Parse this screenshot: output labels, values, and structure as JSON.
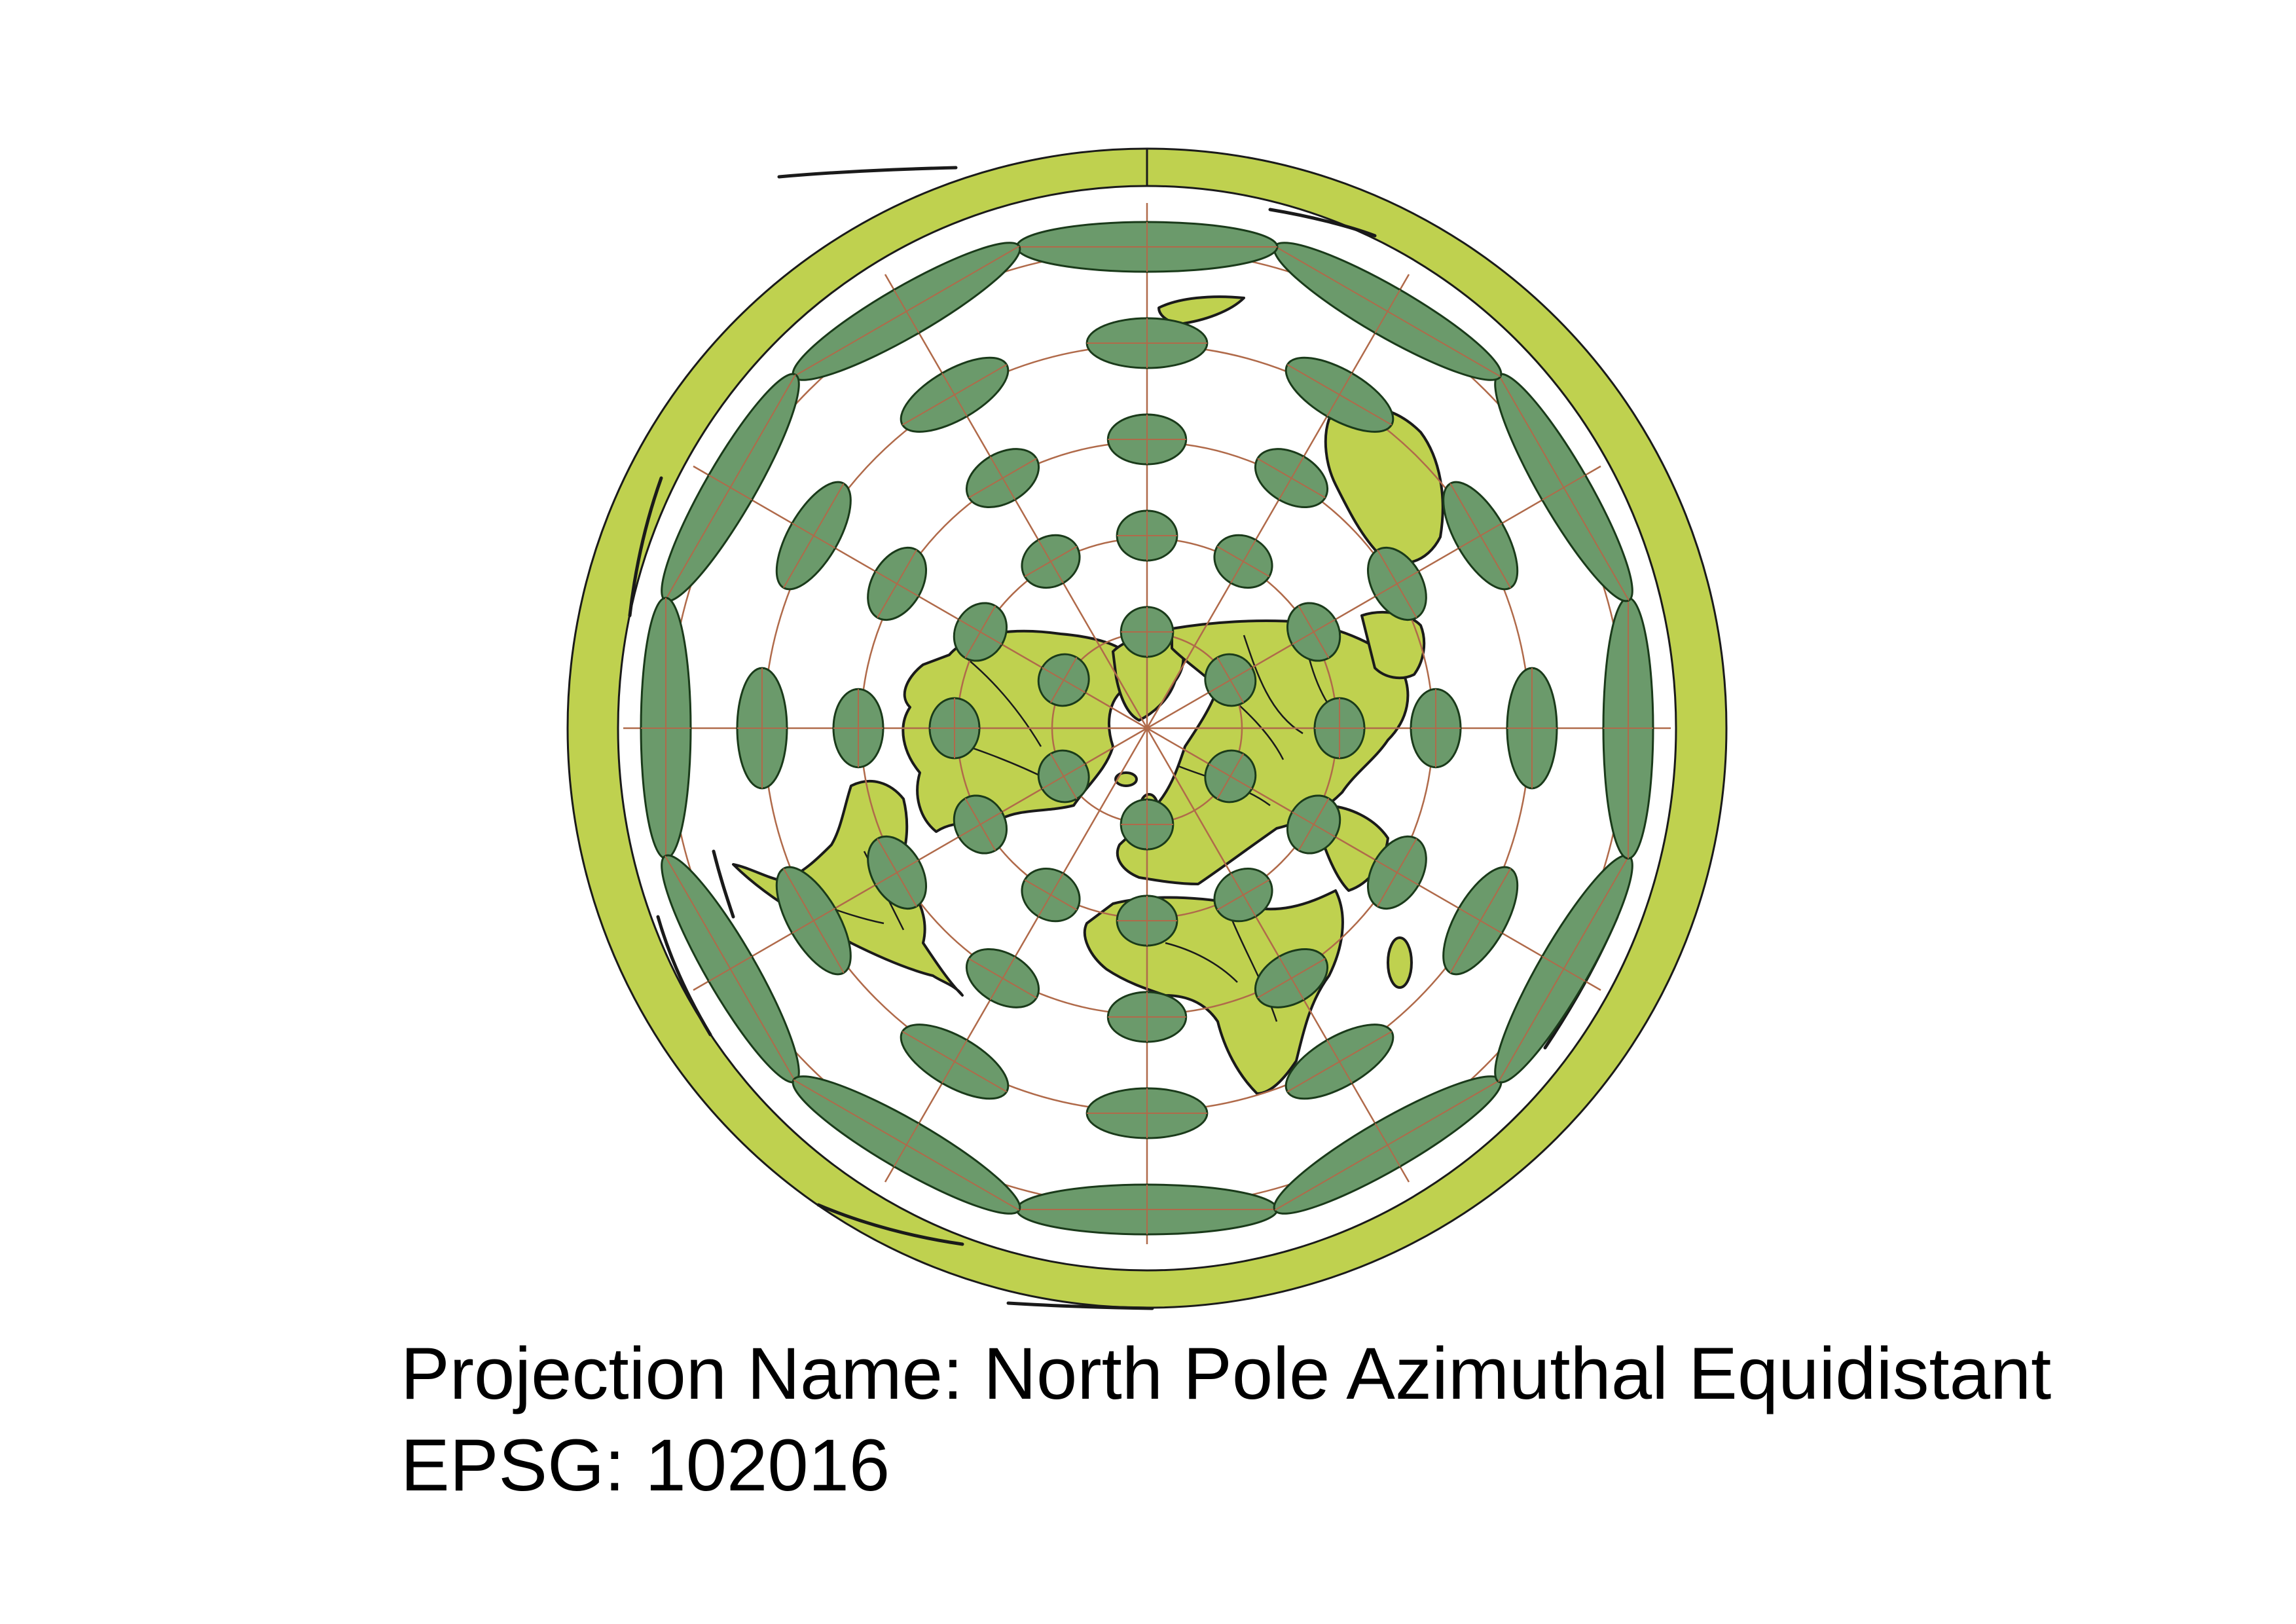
{
  "map": {
    "projection_name_label": "Projection Name: North Pole Azimuthal Equidistant",
    "epsg_label": "EPSG: 102016",
    "colors": {
      "land": "#bfd14f",
      "coastline": "#1a1a1a",
      "graticule": "#b06a4a",
      "tissot": "#6b9a6b",
      "tissot_outline": "#1a3a1a",
      "background": "#ffffff"
    },
    "graticule": {
      "meridian_spacing_deg": 30,
      "parallel_spacing_deg": 30
    },
    "tissot_indicatrix": {
      "shown": true
    }
  }
}
